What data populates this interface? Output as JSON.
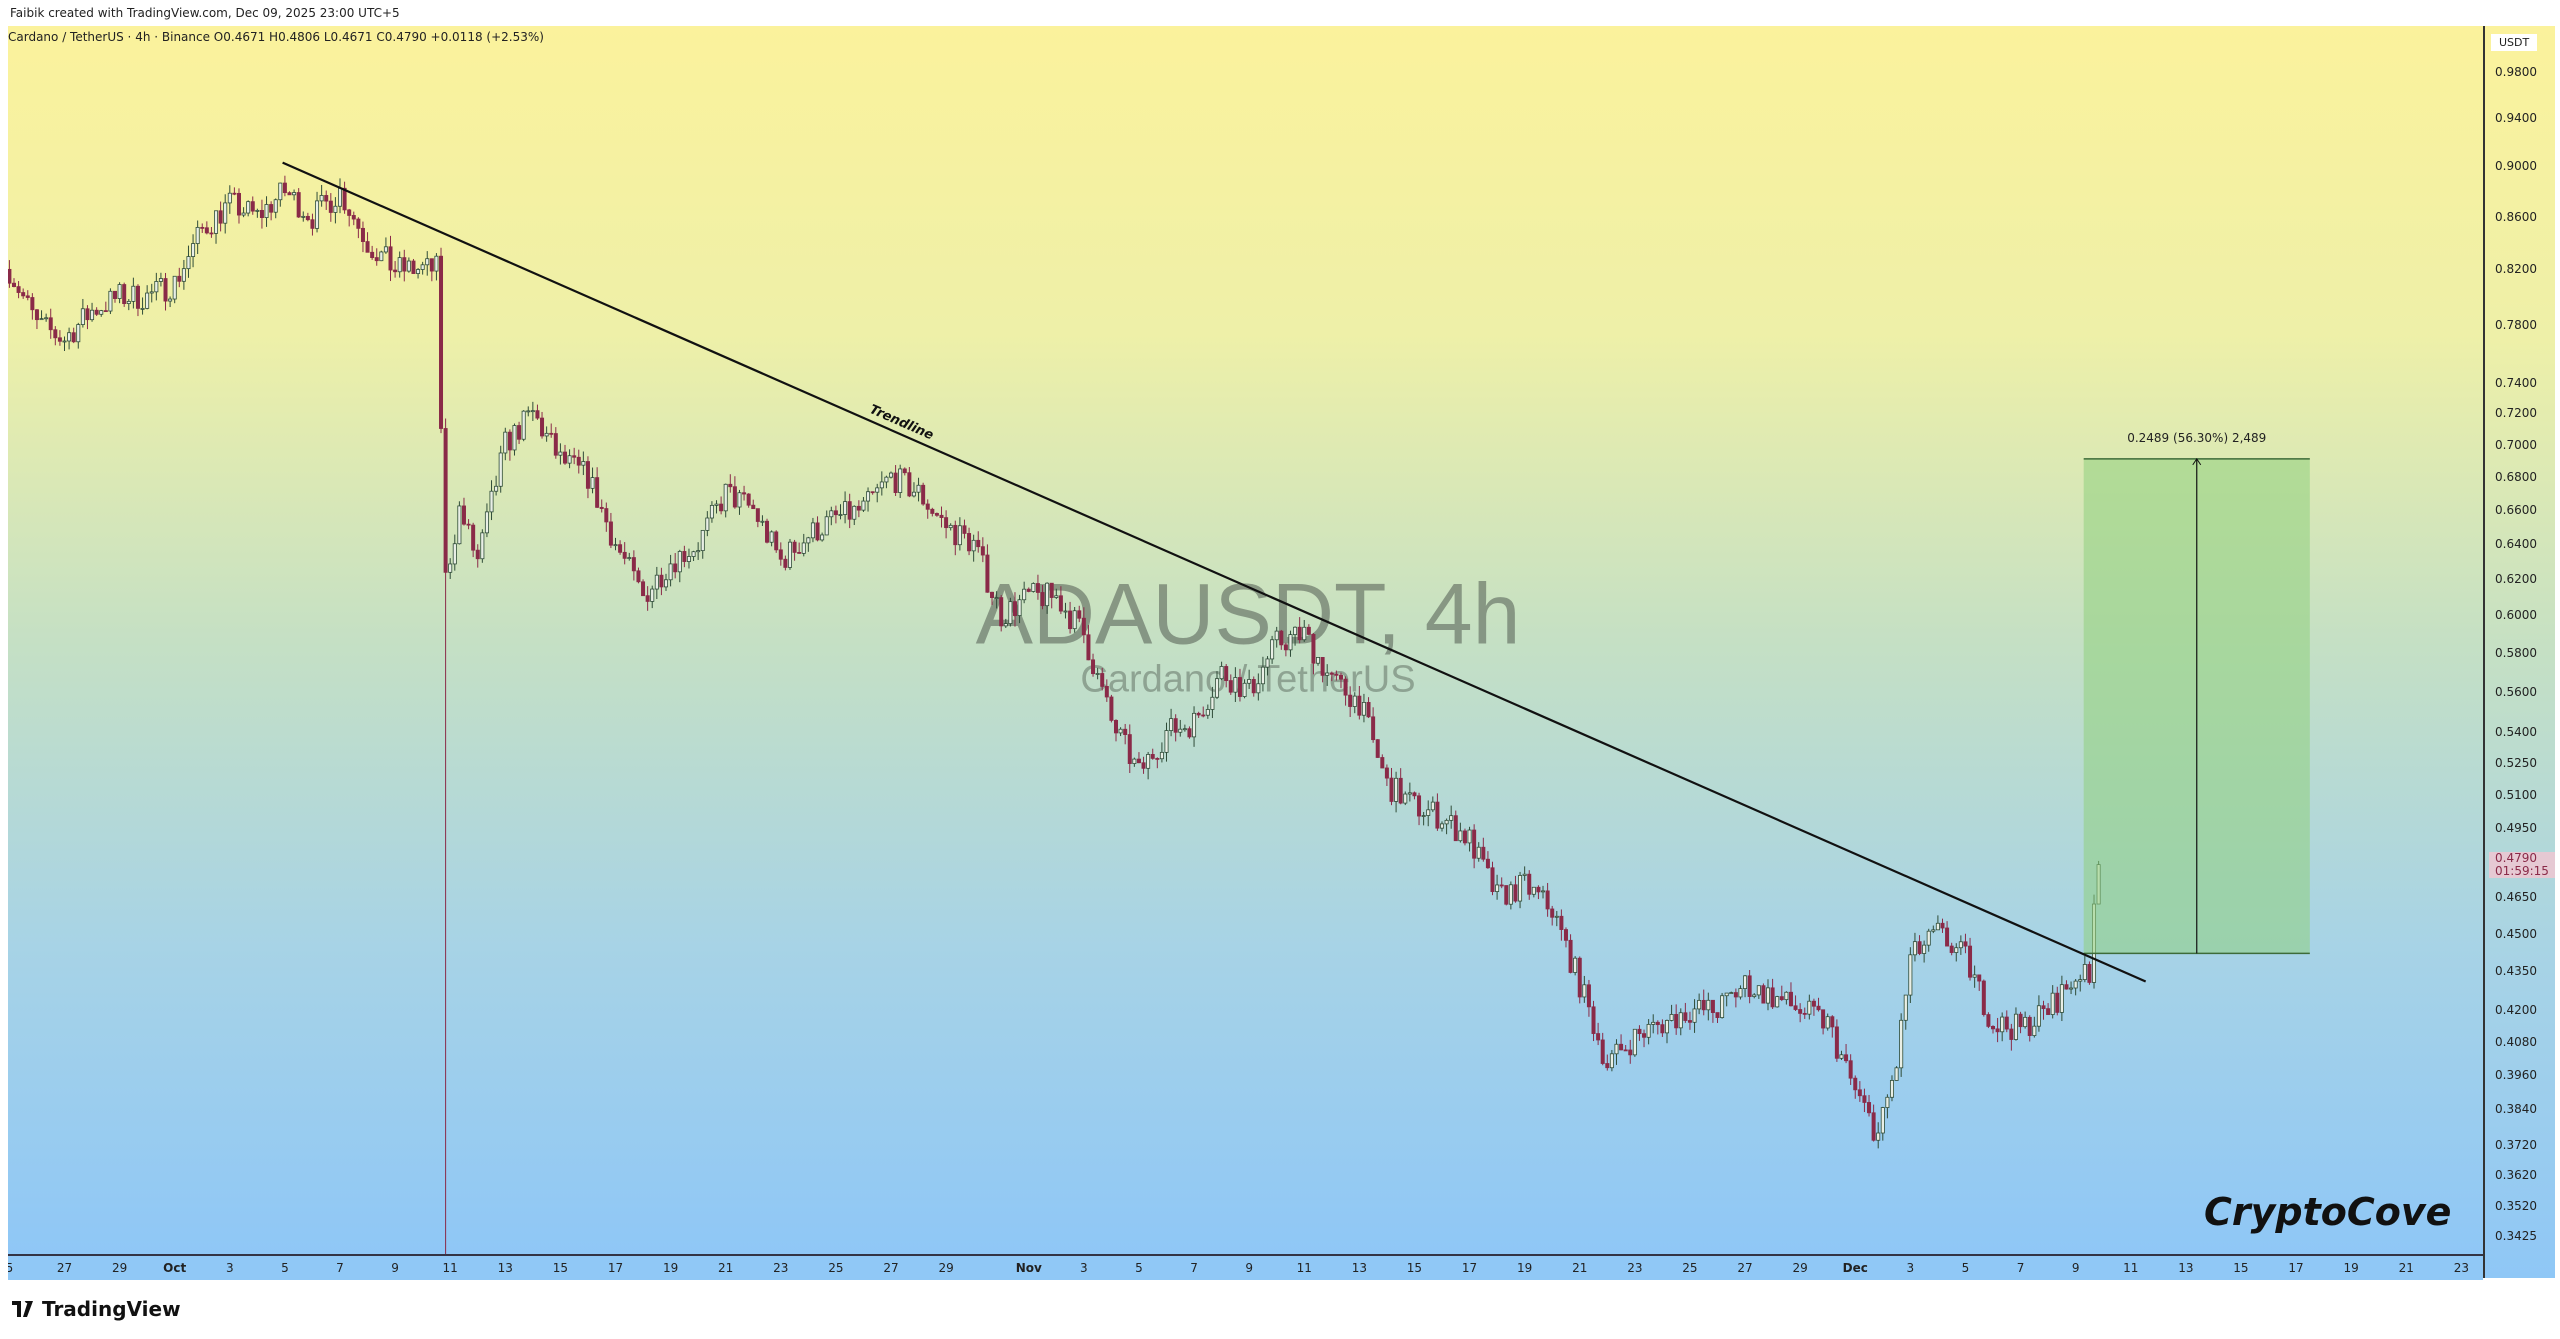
{
  "header": {
    "text": "Faibik created with TradingView.com, Dec 09, 2025 23:00 UTC+5"
  },
  "legend": {
    "text": "Cardano / TetherUS · 4h · Binance  O0.4671  H0.4806  L0.4671  C0.4790  +0.0118 (+2.53%)"
  },
  "watermark": {
    "symbol": "ADAUSDT, 4h",
    "name": "Cardano / TetherUS"
  },
  "brand": {
    "text": "CryptoCove"
  },
  "footer": {
    "logo_text": "TradingView"
  },
  "price_axis": {
    "currency": "USDT",
    "scale": "log",
    "ticks": [
      "0.9800",
      "0.9400",
      "0.9000",
      "0.8600",
      "0.8200",
      "0.7800",
      "0.7400",
      "0.7200",
      "0.7000",
      "0.6800",
      "0.6600",
      "0.6400",
      "0.6200",
      "0.6000",
      "0.5800",
      "0.5600",
      "0.5400",
      "0.5250",
      "0.5100",
      "0.4950",
      "0.4650",
      "0.4500",
      "0.4350",
      "0.4200",
      "0.4080",
      "0.3960",
      "0.3840",
      "0.3720",
      "0.3620",
      "0.3520",
      "0.3425"
    ],
    "last_price": "0.4790",
    "countdown": "01:59:15"
  },
  "time_axis": {
    "ticks": [
      {
        "label": "5",
        "date": "2025-09-25"
      },
      {
        "label": "27",
        "date": "2025-09-27"
      },
      {
        "label": "29",
        "date": "2025-09-29"
      },
      {
        "label": "Oct",
        "date": "2025-10-01"
      },
      {
        "label": "3",
        "date": "2025-10-03"
      },
      {
        "label": "5",
        "date": "2025-10-05"
      },
      {
        "label": "7",
        "date": "2025-10-07"
      },
      {
        "label": "9",
        "date": "2025-10-09"
      },
      {
        "label": "11",
        "date": "2025-10-11"
      },
      {
        "label": "13",
        "date": "2025-10-13"
      },
      {
        "label": "15",
        "date": "2025-10-15"
      },
      {
        "label": "17",
        "date": "2025-10-17"
      },
      {
        "label": "19",
        "date": "2025-10-19"
      },
      {
        "label": "21",
        "date": "2025-10-21"
      },
      {
        "label": "23",
        "date": "2025-10-23"
      },
      {
        "label": "25",
        "date": "2025-10-25"
      },
      {
        "label": "27",
        "date": "2025-10-27"
      },
      {
        "label": "29",
        "date": "2025-10-29"
      },
      {
        "label": "Nov",
        "date": "2025-11-01"
      },
      {
        "label": "3",
        "date": "2025-11-03"
      },
      {
        "label": "5",
        "date": "2025-11-05"
      },
      {
        "label": "7",
        "date": "2025-11-07"
      },
      {
        "label": "9",
        "date": "2025-11-09"
      },
      {
        "label": "11",
        "date": "2025-11-11"
      },
      {
        "label": "13",
        "date": "2025-11-13"
      },
      {
        "label": "15",
        "date": "2025-11-15"
      },
      {
        "label": "17",
        "date": "2025-11-17"
      },
      {
        "label": "19",
        "date": "2025-11-19"
      },
      {
        "label": "21",
        "date": "2025-11-21"
      },
      {
        "label": "23",
        "date": "2025-11-23"
      },
      {
        "label": "25",
        "date": "2025-11-25"
      },
      {
        "label": "27",
        "date": "2025-11-27"
      },
      {
        "label": "29",
        "date": "2025-11-29"
      },
      {
        "label": "Dec",
        "date": "2025-12-01"
      },
      {
        "label": "3",
        "date": "2025-12-03"
      },
      {
        "label": "5",
        "date": "2025-12-05"
      },
      {
        "label": "7",
        "date": "2025-12-07"
      },
      {
        "label": "9",
        "date": "2025-12-09"
      },
      {
        "label": "11",
        "date": "2025-12-11"
      },
      {
        "label": "13",
        "date": "2025-12-13"
      },
      {
        "label": "15",
        "date": "2025-12-15"
      },
      {
        "label": "17",
        "date": "2025-12-17"
      },
      {
        "label": "19",
        "date": "2025-12-19"
      },
      {
        "label": "21",
        "date": "2025-12-21"
      },
      {
        "label": "23",
        "date": "2025-12-23"
      }
    ]
  },
  "chart_data": {
    "type": "candlestick",
    "symbol": "ADAUSDT",
    "interval": "4h",
    "y_scale": "log",
    "ylim": [
      0.3425,
      0.98
    ],
    "xlim": [
      "2025-09-25",
      "2025-12-24"
    ],
    "colors": {
      "up_body": "#e9efe6",
      "up_border": "#2f4c38",
      "down": "#8a2a48",
      "trendline": "#111111",
      "measure_fill": "#8fcf7e"
    },
    "approx_close_path": [
      [
        "2025-09-25 00:00",
        0.82
      ],
      [
        "2025-09-26 00:00",
        0.78
      ],
      [
        "2025-09-27 00:00",
        0.77
      ],
      [
        "2025-09-28 00:00",
        0.79
      ],
      [
        "2025-09-29 00:00",
        0.8
      ],
      [
        "2025-09-30 00:00",
        0.8
      ],
      [
        "2025-10-01 00:00",
        0.81
      ],
      [
        "2025-10-02 00:00",
        0.85
      ],
      [
        "2025-10-03 00:00",
        0.87
      ],
      [
        "2025-10-04 00:00",
        0.86
      ],
      [
        "2025-10-05 00:00",
        0.88
      ],
      [
        "2025-10-06 00:00",
        0.86
      ],
      [
        "2025-10-07 00:00",
        0.88
      ],
      [
        "2025-10-08 00:00",
        0.84
      ],
      [
        "2025-10-09 00:00",
        0.82
      ],
      [
        "2025-10-10 12:00",
        0.82
      ],
      [
        "2025-10-10 20:00",
        0.62
      ],
      [
        "2025-10-11 08:00",
        0.66
      ],
      [
        "2025-10-12 00:00",
        0.63
      ],
      [
        "2025-10-13 00:00",
        0.7
      ],
      [
        "2025-10-14 00:00",
        0.72
      ],
      [
        "2025-10-15 00:00",
        0.69
      ],
      [
        "2025-10-16 00:00",
        0.68
      ],
      [
        "2025-10-17 00:00",
        0.64
      ],
      [
        "2025-10-18 00:00",
        0.61
      ],
      [
        "2025-10-19 00:00",
        0.63
      ],
      [
        "2025-10-20 00:00",
        0.64
      ],
      [
        "2025-10-21 00:00",
        0.67
      ],
      [
        "2025-10-22 00:00",
        0.66
      ],
      [
        "2025-10-23 00:00",
        0.63
      ],
      [
        "2025-10-24 00:00",
        0.645
      ],
      [
        "2025-10-25 00:00",
        0.655
      ],
      [
        "2025-10-26 00:00",
        0.66
      ],
      [
        "2025-10-27 00:00",
        0.68
      ],
      [
        "2025-10-28 00:00",
        0.67
      ],
      [
        "2025-10-29 00:00",
        0.65
      ],
      [
        "2025-10-30 00:00",
        0.64
      ],
      [
        "2025-10-31 00:00",
        0.6
      ],
      [
        "2025-11-01 00:00",
        0.61
      ],
      [
        "2025-11-02 00:00",
        0.61
      ],
      [
        "2025-11-03 00:00",
        0.59
      ],
      [
        "2025-11-04 00:00",
        0.545
      ],
      [
        "2025-11-05 00:00",
        0.52
      ],
      [
        "2025-11-06 00:00",
        0.54
      ],
      [
        "2025-11-07 00:00",
        0.545
      ],
      [
        "2025-11-08 00:00",
        0.57
      ],
      [
        "2025-11-09 00:00",
        0.56
      ],
      [
        "2025-11-10 00:00",
        0.585
      ],
      [
        "2025-11-11 00:00",
        0.59
      ],
      [
        "2025-11-12 00:00",
        0.565
      ],
      [
        "2025-11-13 00:00",
        0.555
      ],
      [
        "2025-11-14 00:00",
        0.515
      ],
      [
        "2025-11-15 00:00",
        0.505
      ],
      [
        "2025-11-16 00:00",
        0.5
      ],
      [
        "2025-11-17 00:00",
        0.49
      ],
      [
        "2025-11-18 00:00",
        0.465
      ],
      [
        "2025-11-19 00:00",
        0.47
      ],
      [
        "2025-11-20 00:00",
        0.46
      ],
      [
        "2025-11-21 00:00",
        0.43
      ],
      [
        "2025-11-22 00:00",
        0.4
      ],
      [
        "2025-11-23 00:00",
        0.41
      ],
      [
        "2025-11-24 00:00",
        0.415
      ],
      [
        "2025-11-25 00:00",
        0.42
      ],
      [
        "2025-11-26 00:00",
        0.42
      ],
      [
        "2025-11-27 00:00",
        0.43
      ],
      [
        "2025-11-28 00:00",
        0.425
      ],
      [
        "2025-11-29 00:00",
        0.42
      ],
      [
        "2025-11-30 00:00",
        0.415
      ],
      [
        "2025-12-01 00:00",
        0.39
      ],
      [
        "2025-12-01 20:00",
        0.375
      ],
      [
        "2025-12-02 12:00",
        0.4
      ],
      [
        "2025-12-03 00:00",
        0.44
      ],
      [
        "2025-12-04 00:00",
        0.45
      ],
      [
        "2025-12-05 00:00",
        0.44
      ],
      [
        "2025-12-06 00:00",
        0.415
      ],
      [
        "2025-12-07 00:00",
        0.413
      ],
      [
        "2025-12-08 00:00",
        0.42
      ],
      [
        "2025-12-09 04:00",
        0.435
      ],
      [
        "2025-12-09 12:00",
        0.43
      ],
      [
        "2025-12-09 16:00",
        0.4671
      ],
      [
        "2025-12-09 20:00",
        0.479
      ]
    ],
    "crash_wick_low": 0.3,
    "trendline": {
      "label": "Trendline",
      "start": [
        "2025-10-04 22:00",
        0.903
      ],
      "end": [
        "2025-12-11 13:00",
        0.431
      ]
    },
    "measure": {
      "label": "0.2489 (56.30%) 2,489",
      "from_date": "2025-12-09 07:00",
      "to_date": "2025-12-17 12:00",
      "low": 0.4421,
      "high": 0.691
    }
  }
}
